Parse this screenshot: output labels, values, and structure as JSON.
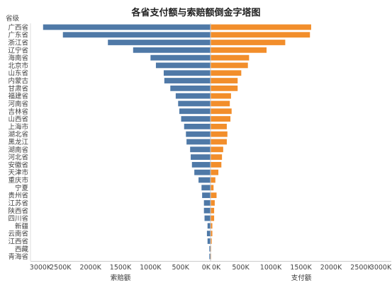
{
  "chart_data": {
    "type": "bar",
    "title": "各省支付额与索赔额倒金字塔图",
    "category_axis_label": "省级",
    "categories": [
      "广西省",
      "广东省",
      "浙江省",
      "辽宁省",
      "海南省",
      "北京市",
      "山东省",
      "内蒙古",
      "甘肃省",
      "福建省",
      "河南省",
      "吉林省",
      "山西省",
      "上海市",
      "湖北省",
      "黑龙江",
      "湖南省",
      "河北省",
      "安徽省",
      "天津市",
      "重庆市",
      "宁夏",
      "贵州省",
      "江苏省",
      "陕西省",
      "四川省",
      "新疆",
      "云南省",
      "江西省",
      "西藏",
      "青海省"
    ],
    "series": [
      {
        "name": "索赔额",
        "color": "#4f79a7",
        "values": [
          2790000,
          2460000,
          1710000,
          1290000,
          1000000,
          910000,
          780000,
          770000,
          670000,
          580000,
          540000,
          520000,
          490000,
          440000,
          410000,
          400000,
          340000,
          330000,
          310000,
          270000,
          200000,
          150000,
          140000,
          110000,
          110000,
          100000,
          50000,
          60000,
          50000,
          20000,
          20000
        ]
      },
      {
        "name": "支付额",
        "color": "#f28e2b",
        "values": [
          1670000,
          1650000,
          1240000,
          930000,
          640000,
          620000,
          510000,
          450000,
          450000,
          340000,
          320000,
          350000,
          330000,
          270000,
          280000,
          270000,
          210000,
          190000,
          180000,
          130000,
          80000,
          50000,
          100000,
          70000,
          60000,
          60000,
          30000,
          30000,
          20000,
          10000,
          10000
        ]
      }
    ],
    "x_left": {
      "label": "索赔额",
      "range": [
        0,
        3000000
      ],
      "reversed": true,
      "ticks": [
        "3000K",
        "2500K",
        "2000K",
        "1500K",
        "1000K",
        "500K",
        "0K"
      ]
    },
    "x_right": {
      "label": "支付额",
      "range": [
        0,
        3000000
      ],
      "ticks": [
        "0K",
        "500K",
        "1000K",
        "1500K",
        "2000K",
        "2500K",
        "3000K"
      ]
    },
    "legend": "none",
    "grid": false
  }
}
